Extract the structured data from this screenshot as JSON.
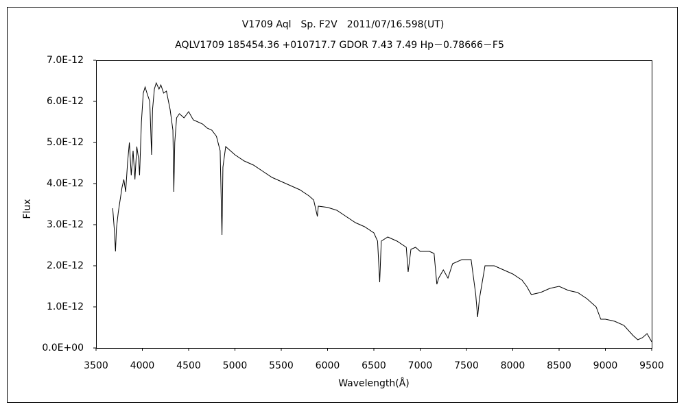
{
  "chart_data": {
    "type": "line",
    "title": "V1709 Aql　Sp. F2V　2011/07/16.598(UT)",
    "subtitle": "AQLV1709 185454.36 +010717.7 GDOR 7.43 7.49 Hp－0.78666－F5",
    "xlabel": "Wavelength(Å)",
    "ylabel": "Flux",
    "color": "#000000",
    "grid": false,
    "x": [
      3680,
      3700,
      3710,
      3720,
      3740,
      3760,
      3780,
      3800,
      3820,
      3840,
      3860,
      3880,
      3900,
      3920,
      3940,
      3960,
      3970,
      3990,
      4010,
      4030,
      4050,
      4080,
      4100,
      4110,
      4130,
      4150,
      4180,
      4200,
      4230,
      4260,
      4300,
      4330,
      4340,
      4350,
      4370,
      4400,
      4450,
      4500,
      4550,
      4600,
      4650,
      4700,
      4750,
      4800,
      4840,
      4860,
      4870,
      4900,
      4950,
      5000,
      5100,
      5200,
      5300,
      5400,
      5500,
      5600,
      5700,
      5800,
      5850,
      5890,
      5900,
      6000,
      6100,
      6200,
      6300,
      6400,
      6500,
      6540,
      6563,
      6580,
      6650,
      6750,
      6850,
      6870,
      6900,
      6950,
      7000,
      7100,
      7150,
      7180,
      7200,
      7250,
      7300,
      7350,
      7450,
      7550,
      7600,
      7620,
      7640,
      7700,
      7800,
      7900,
      8000,
      8100,
      8150,
      8200,
      8300,
      8400,
      8500,
      8600,
      8700,
      8800,
      8900,
      8950,
      9000,
      9100,
      9200,
      9300,
      9350,
      9400,
      9450,
      9500
    ],
    "values": [
      3.4e-12,
      2.8e-12,
      2.35e-12,
      2.9e-12,
      3.3e-12,
      3.6e-12,
      3.9e-12,
      4.1e-12,
      3.8e-12,
      4.5e-12,
      5e-12,
      4.2e-12,
      4.8e-12,
      4.1e-12,
      4.9e-12,
      4.6e-12,
      4.2e-12,
      5.5e-12,
      6.2e-12,
      6.35e-12,
      6.2e-12,
      6e-12,
      4.7e-12,
      5.8e-12,
      6.3e-12,
      6.45e-12,
      6.3e-12,
      6.4e-12,
      6.2e-12,
      6.25e-12,
      5.8e-12,
      5.3e-12,
      3.8e-12,
      5e-12,
      5.6e-12,
      5.7e-12,
      5.6e-12,
      5.75e-12,
      5.55e-12,
      5.5e-12,
      5.45e-12,
      5.35e-12,
      5.3e-12,
      5.15e-12,
      4.8e-12,
      2.75e-12,
      4.4e-12,
      4.9e-12,
      4.8e-12,
      4.7e-12,
      4.55e-12,
      4.45e-12,
      4.3e-12,
      4.15e-12,
      4.05e-12,
      3.95e-12,
      3.85e-12,
      3.7e-12,
      3.6e-12,
      3.2e-12,
      3.45e-12,
      3.42e-12,
      3.35e-12,
      3.2e-12,
      3.05e-12,
      2.95e-12,
      2.8e-12,
      2.6e-12,
      1.6e-12,
      2.6e-12,
      2.7e-12,
      2.6e-12,
      2.45e-12,
      1.85e-12,
      2.4e-12,
      2.45e-12,
      2.35e-12,
      2.35e-12,
      2.3e-12,
      1.55e-12,
      1.7e-12,
      1.9e-12,
      1.7e-12,
      2.05e-12,
      2.15e-12,
      2.15e-12,
      1.3e-12,
      7.5e-13,
      1.2e-12,
      2e-12,
      2e-12,
      1.9e-12,
      1.8e-12,
      1.65e-12,
      1.5e-12,
      1.3e-12,
      1.35e-12,
      1.45e-12,
      1.5e-12,
      1.4e-12,
      1.35e-12,
      1.2e-12,
      1e-12,
      7e-13,
      7e-13,
      6.5e-13,
      5.5e-13,
      3e-13,
      2e-13,
      2.5e-13,
      3.5e-13,
      1.5e-13
    ],
    "xlim": [
      3500,
      9500
    ],
    "xticks": [
      3500,
      4000,
      4500,
      5000,
      5500,
      6000,
      6500,
      7000,
      7500,
      8000,
      8500,
      9000,
      9500
    ],
    "ylim": [
      0,
      7e-12
    ],
    "yticks": [
      {
        "value": 0,
        "label": "0.0E+00"
      },
      {
        "value": 1e-12,
        "label": "1.0E-12"
      },
      {
        "value": 2e-12,
        "label": "2.0E-12"
      },
      {
        "value": 3e-12,
        "label": "3.0E-12"
      },
      {
        "value": 4e-12,
        "label": "4.0E-12"
      },
      {
        "value": 5e-12,
        "label": "5.0E-12"
      },
      {
        "value": 6e-12,
        "label": "6.0E-12"
      },
      {
        "value": 7e-12,
        "label": "7.0E-12"
      }
    ]
  }
}
